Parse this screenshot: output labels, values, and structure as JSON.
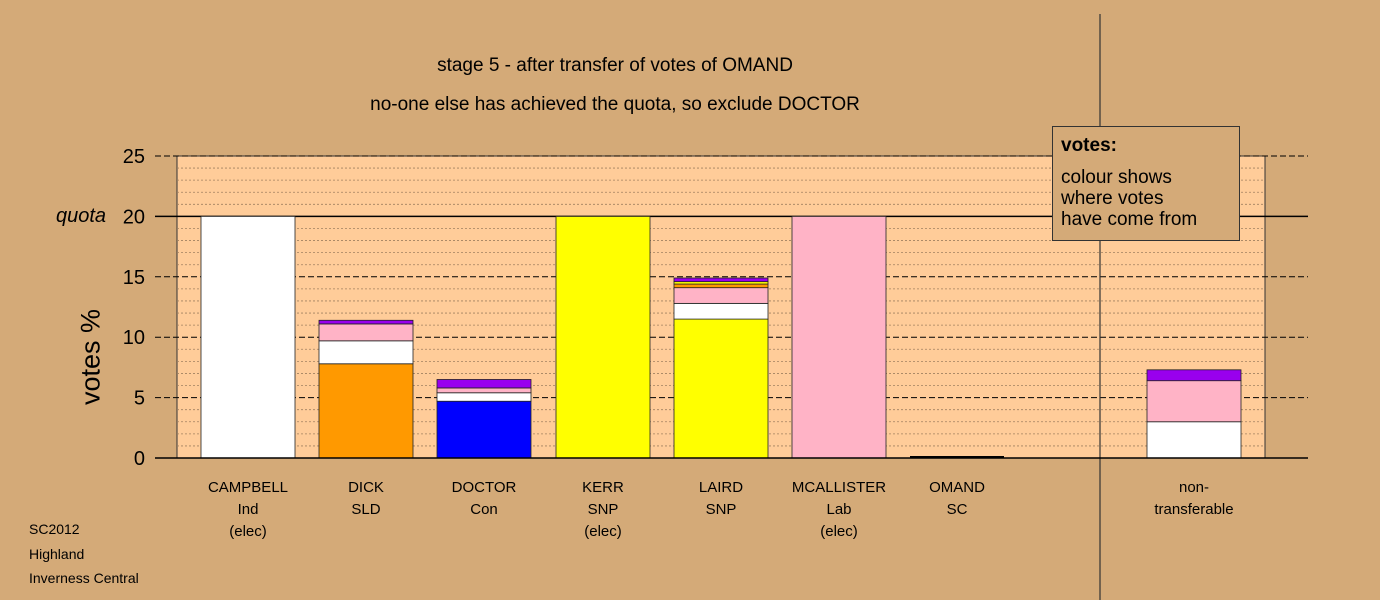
{
  "chart_data": {
    "type": "bar",
    "stacked": true,
    "title": "stage 5 - after transfer of votes of OMAND",
    "subtitle": "no-one else has achieved the quota, so exclude DOCTOR",
    "ylabel": "votes %",
    "quota_label": "quota",
    "quota_value": 20,
    "ylim": [
      0,
      25
    ],
    "yticks": [
      0,
      5,
      10,
      15,
      20,
      25
    ],
    "categories": [
      {
        "lines": [
          "CAMPBELL",
          "Ind",
          "(elec)"
        ]
      },
      {
        "lines": [
          "DICK",
          "SLD"
        ]
      },
      {
        "lines": [
          "DOCTOR",
          "Con"
        ]
      },
      {
        "lines": [
          "KERR",
          "SNP",
          "(elec)"
        ]
      },
      {
        "lines": [
          "LAIRD",
          "SNP"
        ]
      },
      {
        "lines": [
          "MCALLISTER",
          "Lab",
          "(elec)"
        ]
      },
      {
        "lines": [
          "OMAND",
          "SC"
        ]
      },
      {
        "lines": [
          "non-",
          "transferable"
        ]
      }
    ],
    "bars": [
      [
        {
          "value": 20.0,
          "color": "#ffffff"
        }
      ],
      [
        {
          "value": 7.8,
          "color": "#ff9900"
        },
        {
          "value": 1.9,
          "color": "#ffffff"
        },
        {
          "value": 1.4,
          "color": "#ffb3c6"
        },
        {
          "value": 0.3,
          "color": "#9900ee"
        }
      ],
      [
        {
          "value": 4.7,
          "color": "#0000ff"
        },
        {
          "value": 0.7,
          "color": "#ffffff"
        },
        {
          "value": 0.4,
          "color": "#ffb3c6"
        },
        {
          "value": 0.7,
          "color": "#9900ee"
        }
      ],
      [
        {
          "value": 20.0,
          "color": "#ffff00"
        }
      ],
      [
        {
          "value": 11.5,
          "color": "#ffff00"
        },
        {
          "value": 1.3,
          "color": "#ffffff"
        },
        {
          "value": 1.3,
          "color": "#ffb3c6"
        },
        {
          "value": 0.3,
          "color": "#ff9900"
        },
        {
          "value": 0.2,
          "color": "#ffff00"
        },
        {
          "value": 0.3,
          "color": "#9900ee"
        }
      ],
      [
        {
          "value": 20.0,
          "color": "#ffb3c6"
        }
      ],
      [],
      [
        {
          "value": 3.0,
          "color": "#ffffff"
        },
        {
          "value": 3.4,
          "color": "#ffb3c6"
        },
        {
          "value": 0.9,
          "color": "#9900ee"
        }
      ]
    ],
    "legend": {
      "title": "votes:",
      "text": [
        "colour shows",
        "where votes",
        "have come from"
      ]
    }
  },
  "footer": [
    "SC2012",
    "Highland",
    "Inverness Central"
  ],
  "colors": {
    "background": "#d4aa78",
    "plot_background": "#ffcc99"
  }
}
